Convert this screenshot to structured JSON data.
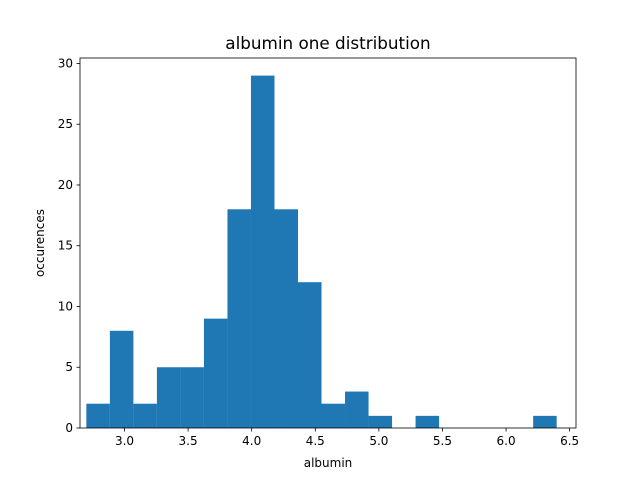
{
  "chart_data": {
    "type": "histogram",
    "title": "albumin one distribution",
    "xlabel": "albumin",
    "ylabel": "occurences",
    "xlim": [
      2.65,
      6.55
    ],
    "ylim": [
      0,
      30.45
    ],
    "xticks": [
      3.0,
      3.5,
      4.0,
      4.5,
      5.0,
      5.5,
      6.0,
      6.5
    ],
    "xtick_labels": [
      "3.0",
      "3.5",
      "4.0",
      "4.5",
      "5.0",
      "5.5",
      "6.0",
      "6.5"
    ],
    "yticks": [
      0,
      5,
      10,
      15,
      20,
      25,
      30
    ],
    "ytick_labels": [
      "0",
      "5",
      "10",
      "15",
      "20",
      "25",
      "30"
    ],
    "bin_start": 2.7,
    "bin_width": 0.1849,
    "values": [
      2,
      8,
      2,
      5,
      5,
      9,
      18,
      29,
      18,
      12,
      2,
      3,
      1,
      0,
      1,
      0,
      0,
      0,
      0,
      1
    ],
    "bar_color": "#1f77b4",
    "grid": false
  }
}
